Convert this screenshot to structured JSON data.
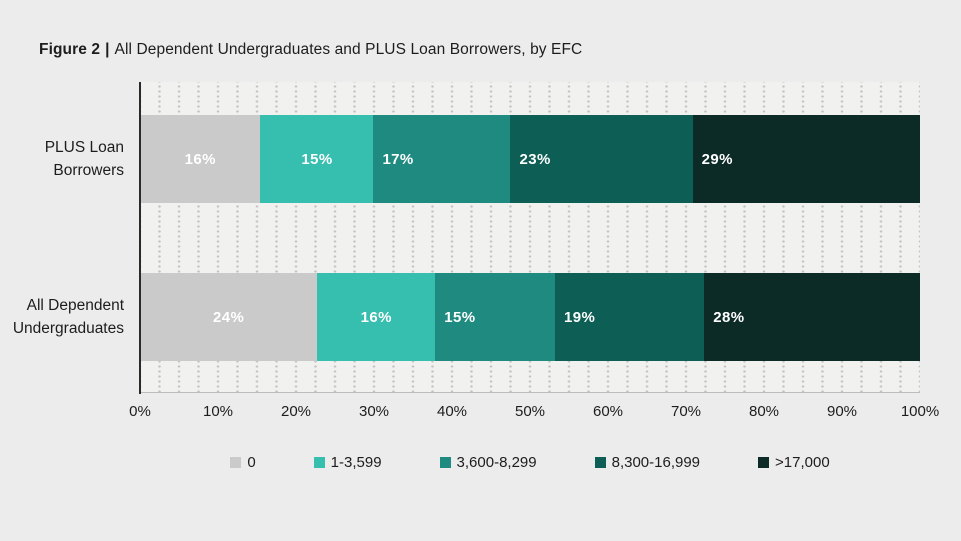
{
  "page": {
    "background": "#ececec"
  },
  "title": {
    "figure_label": "Figure 2",
    "separator": "|",
    "text": "All Dependent Undergraduates and PLUS Loan Borrowers, by EFC"
  },
  "chart_data": {
    "type": "bar",
    "stacked": true,
    "orientation": "horizontal",
    "title": "Figure 2 | All Dependent Undergraduates and PLUS Loan Borrowers, by EFC",
    "categories": [
      {
        "lines": [
          "PLUS Loan",
          "Borrowers"
        ]
      },
      {
        "lines": [
          "All Dependent",
          "Undergraduates"
        ]
      }
    ],
    "series": [
      {
        "name": "0",
        "color": "#cacaca",
        "values": [
          16,
          24
        ]
      },
      {
        "name": "1-3,599",
        "color": "#36beae",
        "values": [
          15,
          16
        ]
      },
      {
        "name": "3,600-8,299",
        "color": "#1f8b80",
        "values": [
          17,
          15
        ]
      },
      {
        "name": "8,300-16,999",
        "color": "#0d5e54",
        "values": [
          23,
          19
        ]
      },
      {
        "name": ">17,000",
        "color": "#0c2a26",
        "values": [
          29,
          28
        ]
      }
    ],
    "data_labels": [
      [
        "16%",
        "15%",
        "17%",
        "23%",
        "29%"
      ],
      [
        "24%",
        "16%",
        "15%",
        "19%",
        "28%"
      ]
    ],
    "x_ticks": [
      "0%",
      "10%",
      "20%",
      "30%",
      "40%",
      "50%",
      "60%",
      "70%",
      "80%",
      "90%",
      "100%"
    ],
    "xlim": [
      0,
      100
    ],
    "grid": "dotted-vertical",
    "legend_position": "bottom",
    "axis_color": "#2a2a2a",
    "label_text_color": "#ffffff"
  }
}
